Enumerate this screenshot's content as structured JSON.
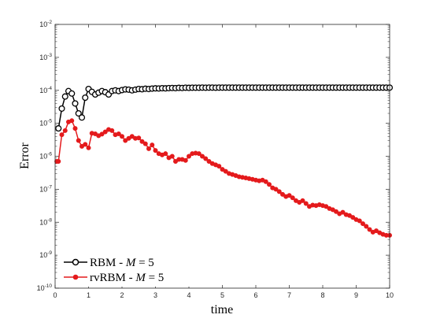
{
  "chart_data": {
    "type": "line",
    "xlabel": "time",
    "ylabel": "Error",
    "xlim": [
      0,
      10
    ],
    "ylim_exponents": [
      -10,
      -2
    ],
    "yscale": "log",
    "x_ticks": [
      "0",
      "1",
      "2",
      "3",
      "4",
      "5",
      "6",
      "7",
      "8",
      "9",
      "10"
    ],
    "y_tick_base": "10",
    "y_tick_exponents": [
      "-10",
      "-9",
      "-8",
      "-7",
      "-6",
      "-5",
      "-4",
      "-3",
      "-2"
    ],
    "grid": false,
    "legend_position": "bottom-left",
    "series": [
      {
        "name": "RBM - M = 5",
        "legend_prefix": "RBM - ",
        "legend_math": "M",
        "legend_suffix": " = 5",
        "color": "#000000",
        "marker": "open-circle",
        "x": [
          0.1,
          0.2,
          0.3,
          0.4,
          0.5,
          0.6,
          0.7,
          0.8,
          0.9,
          1.0,
          1.1,
          1.2,
          1.3,
          1.4,
          1.5,
          1.6,
          1.7,
          1.8,
          1.9,
          2.0,
          2.1,
          2.2,
          2.3,
          2.4,
          2.5,
          2.6,
          2.7,
          2.8,
          2.9,
          3.0,
          3.1,
          3.2,
          3.3,
          3.4,
          3.5,
          3.6,
          3.7,
          3.8,
          3.9,
          4.0,
          4.1,
          4.2,
          4.3,
          4.4,
          4.5,
          4.6,
          4.7,
          4.8,
          4.9,
          5.0,
          5.1,
          5.2,
          5.3,
          5.4,
          5.5,
          5.6,
          5.7,
          5.8,
          5.9,
          6.0,
          6.1,
          6.2,
          6.3,
          6.4,
          6.5,
          6.6,
          6.7,
          6.8,
          6.9,
          7.0,
          7.1,
          7.2,
          7.3,
          7.4,
          7.5,
          7.6,
          7.7,
          7.8,
          7.9,
          8.0,
          8.1,
          8.2,
          8.3,
          8.4,
          8.5,
          8.6,
          8.7,
          8.8,
          8.9,
          9.0,
          9.1,
          9.2,
          9.3,
          9.4,
          9.5,
          9.6,
          9.7,
          9.8,
          9.9,
          10.0
        ],
        "y": [
          7e-06,
          2.8e-05,
          6.5e-05,
          9.5e-05,
          8e-05,
          4e-05,
          2e-05,
          1.5e-05,
          6e-05,
          0.00011,
          9e-05,
          7.5e-05,
          8.5e-05,
          9.5e-05,
          8.8e-05,
          7.5e-05,
          9.5e-05,
          0.0001,
          9.5e-05,
          0.000102,
          0.000107,
          0.000105,
          0.0001,
          0.000105,
          0.00011,
          0.000108,
          0.000112,
          0.00011,
          0.000113,
          0.000115,
          0.000114,
          0.000116,
          0.000115,
          0.000117,
          0.000118,
          0.000117,
          0.000119,
          0.000118,
          0.00012,
          0.000119,
          0.00012,
          0.00012,
          0.00012,
          0.000121,
          0.00012,
          0.000121,
          0.000121,
          0.00012,
          0.000121,
          0.000121,
          0.000121,
          0.000121,
          0.000121,
          0.000121,
          0.000121,
          0.000121,
          0.000121,
          0.000121,
          0.000121,
          0.000121,
          0.000121,
          0.000121,
          0.000121,
          0.000121,
          0.000121,
          0.000121,
          0.000121,
          0.000121,
          0.000121,
          0.000121,
          0.000121,
          0.000121,
          0.000121,
          0.000121,
          0.000121,
          0.000121,
          0.000121,
          0.000121,
          0.000121,
          0.000121,
          0.000121,
          0.000121,
          0.000121,
          0.000121,
          0.000121,
          0.000121,
          0.000121,
          0.000121,
          0.000121,
          0.000121,
          0.000121,
          0.000121,
          0.000121,
          0.000121,
          0.000121,
          0.000121,
          0.000121,
          0.000121,
          0.000121,
          0.000121
        ]
      },
      {
        "name": "rvRBM - M = 5",
        "legend_prefix": "rvRBM - ",
        "legend_math": "M",
        "legend_suffix": " = 5",
        "color": "#e41a1c",
        "marker": "filled-circle",
        "x": [
          0.05,
          0.1,
          0.2,
          0.3,
          0.4,
          0.5,
          0.6,
          0.7,
          0.8,
          0.9,
          1.0,
          1.1,
          1.2,
          1.3,
          1.4,
          1.5,
          1.6,
          1.7,
          1.8,
          1.9,
          2.0,
          2.1,
          2.2,
          2.3,
          2.4,
          2.5,
          2.6,
          2.7,
          2.8,
          2.9,
          3.0,
          3.1,
          3.2,
          3.3,
          3.4,
          3.5,
          3.6,
          3.7,
          3.8,
          3.9,
          4.0,
          4.1,
          4.2,
          4.3,
          4.4,
          4.5,
          4.6,
          4.7,
          4.8,
          4.9,
          5.0,
          5.1,
          5.2,
          5.3,
          5.4,
          5.5,
          5.6,
          5.7,
          5.8,
          5.9,
          6.0,
          6.1,
          6.2,
          6.3,
          6.4,
          6.5,
          6.6,
          6.7,
          6.8,
          6.9,
          7.0,
          7.1,
          7.2,
          7.3,
          7.4,
          7.5,
          7.6,
          7.7,
          7.8,
          7.9,
          8.0,
          8.1,
          8.2,
          8.3,
          8.4,
          8.5,
          8.6,
          8.7,
          8.8,
          8.9,
          9.0,
          9.1,
          9.2,
          9.3,
          9.4,
          9.5,
          9.6,
          9.7,
          9.8,
          9.9,
          10.0
        ],
        "y": [
          7e-07,
          7e-07,
          4.5e-06,
          6e-06,
          1.1e-05,
          1.2e-05,
          7e-06,
          3e-06,
          2e-06,
          2.3e-06,
          1.8e-06,
          5e-06,
          4.8e-06,
          4.2e-06,
          4.7e-06,
          5.5e-06,
          6.5e-06,
          6e-06,
          4.5e-06,
          4.8e-06,
          4e-06,
          3e-06,
          3.5e-06,
          4e-06,
          3.5e-06,
          3.6e-06,
          2.8e-06,
          2.4e-06,
          1.7e-06,
          2.2e-06,
          1.5e-06,
          1.2e-06,
          1.1e-06,
          1.2e-06,
          9e-07,
          1e-06,
          7e-07,
          8e-07,
          8e-07,
          7.5e-07,
          1e-06,
          1.2e-06,
          1.25e-06,
          1.2e-06,
          1e-06,
          8.5e-07,
          7e-07,
          6e-07,
          5.5e-07,
          5e-07,
          4e-07,
          3.5e-07,
          3e-07,
          2.8e-07,
          2.6e-07,
          2.4e-07,
          2.3e-07,
          2.2e-07,
          2.1e-07,
          2e-07,
          1.9e-07,
          1.8e-07,
          1.9e-07,
          1.7e-07,
          1.4e-07,
          1.1e-07,
          1e-07,
          8.5e-08,
          7e-08,
          6e-08,
          6.5e-08,
          5.5e-08,
          4.5e-08,
          4e-08,
          4.5e-08,
          3.7e-08,
          3e-08,
          3.3e-08,
          3.2e-08,
          3.4e-08,
          3.2e-08,
          3e-08,
          2.6e-08,
          2.4e-08,
          2.1e-08,
          1.8e-08,
          2e-08,
          1.7e-08,
          1.6e-08,
          1.4e-08,
          1.2e-08,
          1.1e-08,
          9e-09,
          7.5e-09,
          6e-09,
          5e-09,
          5.5e-09,
          4.8e-09,
          4.3e-09,
          4e-09,
          4e-09
        ]
      }
    ]
  }
}
